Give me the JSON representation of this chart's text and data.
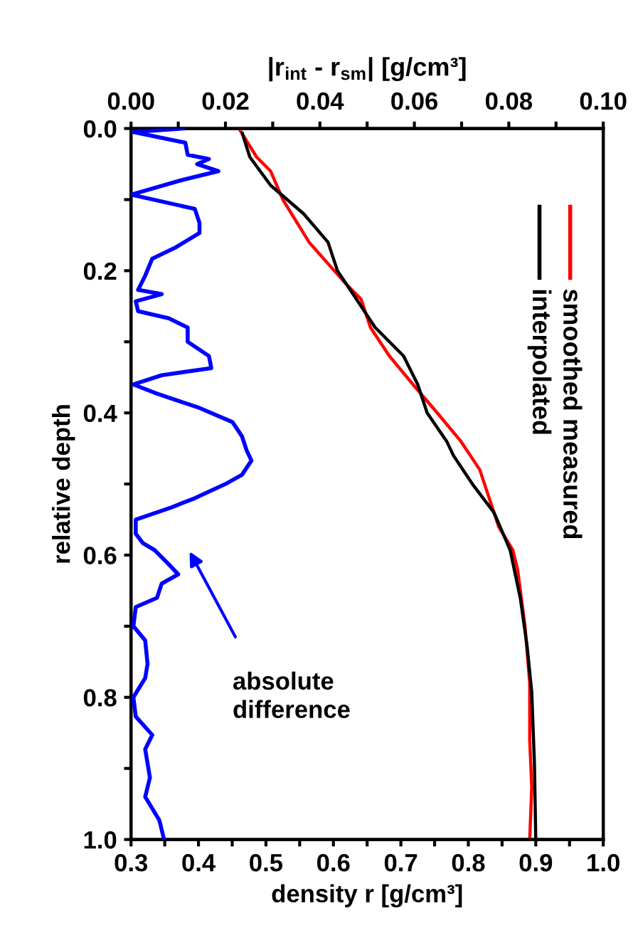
{
  "chart_data": {
    "type": "line",
    "xlabel": "density r [g/cm³]",
    "x2label": "|r$_{int}$ - r$_{sm}$| [g/cm³]",
    "ylabel": "relative depth",
    "xlim": [
      0.3,
      1.0
    ],
    "x2lim": [
      0.0,
      0.1
    ],
    "ylim": [
      1.0,
      0.0
    ],
    "xticks": [
      {
        "value": 0.3,
        "label": "0.3"
      },
      {
        "value": 0.35,
        "label": null
      },
      {
        "value": 0.4,
        "label": "0.4"
      },
      {
        "value": 0.45,
        "label": null
      },
      {
        "value": 0.5,
        "label": "0.5"
      },
      {
        "value": 0.55,
        "label": null
      },
      {
        "value": 0.6,
        "label": "0.6"
      },
      {
        "value": 0.65,
        "label": null
      },
      {
        "value": 0.7,
        "label": "0.7"
      },
      {
        "value": 0.75,
        "label": null
      },
      {
        "value": 0.8,
        "label": "0.8"
      },
      {
        "value": 0.85,
        "label": null
      },
      {
        "value": 0.9,
        "label": "0.9"
      },
      {
        "value": 0.95,
        "label": null
      },
      {
        "value": 1.0,
        "label": "1.0"
      }
    ],
    "x2ticks": [
      {
        "value": 0.0,
        "label": "0.00"
      },
      {
        "value": 0.01,
        "label": null
      },
      {
        "value": 0.02,
        "label": "0.02"
      },
      {
        "value": 0.03,
        "label": null
      },
      {
        "value": 0.04,
        "label": "0.04"
      },
      {
        "value": 0.05,
        "label": null
      },
      {
        "value": 0.06,
        "label": "0.06"
      },
      {
        "value": 0.07,
        "label": null
      },
      {
        "value": 0.08,
        "label": "0.08"
      },
      {
        "value": 0.09,
        "label": null
      },
      {
        "value": 0.1,
        "label": "0.10"
      }
    ],
    "yticks": [
      {
        "value": 0.0,
        "label": "0.0"
      },
      {
        "value": 0.1,
        "label": null
      },
      {
        "value": 0.2,
        "label": "0.2"
      },
      {
        "value": 0.3,
        "label": null
      },
      {
        "value": 0.4,
        "label": "0.4"
      },
      {
        "value": 0.5,
        "label": null
      },
      {
        "value": 0.6,
        "label": "0.6"
      },
      {
        "value": 0.7,
        "label": null
      },
      {
        "value": 0.8,
        "label": "0.8"
      },
      {
        "value": 0.9,
        "label": null
      },
      {
        "value": 1.0,
        "label": "1.0"
      }
    ],
    "grid": false,
    "legend": "right",
    "marker": "none",
    "line_style": "solid",
    "series": [
      {
        "name": "smoothed measured",
        "color": "#ff0000",
        "x": [
          0.462,
          0.486,
          0.507,
          0.525,
          0.564,
          0.62,
          0.641,
          0.655,
          0.683,
          0.718,
          0.754,
          0.789,
          0.803,
          0.817,
          0.824,
          0.845,
          0.866,
          0.873,
          0.884,
          0.891,
          0.891,
          0.894,
          0.891
        ],
        "values": [
          0.003,
          0.04,
          0.06,
          0.1,
          0.16,
          0.22,
          0.24,
          0.28,
          0.32,
          0.36,
          0.4,
          0.44,
          0.46,
          0.48,
          0.5,
          0.56,
          0.593,
          0.62,
          0.7,
          0.78,
          0.86,
          0.927,
          1.0
        ]
      },
      {
        "name": "interpolated",
        "color": "#000000",
        "x": [
          0.465,
          0.476,
          0.507,
          0.556,
          0.592,
          0.606,
          0.634,
          0.662,
          0.704,
          0.725,
          0.739,
          0.768,
          0.778,
          0.806,
          0.838,
          0.862,
          0.877,
          0.887,
          0.894,
          0.898,
          0.9
        ],
        "values": [
          0.007,
          0.04,
          0.08,
          0.12,
          0.16,
          0.2,
          0.24,
          0.28,
          0.32,
          0.36,
          0.4,
          0.44,
          0.46,
          0.5,
          0.54,
          0.593,
          0.66,
          0.727,
          0.793,
          0.893,
          1.0
        ]
      },
      {
        "color": "#0000ff",
        "axis": "x2",
        "x": [
          0.011,
          0.0005,
          0.0115,
          0.012,
          0.0165,
          0.014,
          0.0185,
          0.0105,
          0.0,
          0.0135,
          0.0145,
          0.0145,
          0.0095,
          0.0045,
          0.003,
          0.0015,
          0.0065,
          0.001,
          0.0015,
          0.008,
          0.012,
          0.012,
          0.0165,
          0.017,
          0.0065,
          0.0005,
          0.0055,
          0.0145,
          0.0215,
          0.0235,
          0.0245,
          0.0255,
          0.0235,
          0.02,
          0.0135,
          0.0085,
          0.001,
          0.001,
          0.0025,
          0.005,
          0.008,
          0.01,
          0.0065,
          0.0055,
          0.001,
          0.0005,
          0.003,
          0.0035,
          0.003,
          0.0005,
          0.001,
          0.0045,
          0.003,
          0.004,
          0.003,
          0.006,
          0.007
        ],
        "values": [
          0.0,
          0.005,
          0.02,
          0.037,
          0.043,
          0.05,
          0.06,
          0.073,
          0.093,
          0.113,
          0.133,
          0.147,
          0.167,
          0.183,
          0.207,
          0.227,
          0.233,
          0.243,
          0.257,
          0.267,
          0.28,
          0.3,
          0.32,
          0.337,
          0.347,
          0.36,
          0.373,
          0.393,
          0.413,
          0.433,
          0.453,
          0.467,
          0.487,
          0.5,
          0.52,
          0.533,
          0.55,
          0.57,
          0.583,
          0.593,
          0.613,
          0.627,
          0.64,
          0.66,
          0.673,
          0.7,
          0.72,
          0.753,
          0.773,
          0.8,
          0.827,
          0.853,
          0.873,
          0.913,
          0.94,
          0.973,
          1.0
        ]
      }
    ],
    "annotations": [
      "absolute difference"
    ]
  }
}
